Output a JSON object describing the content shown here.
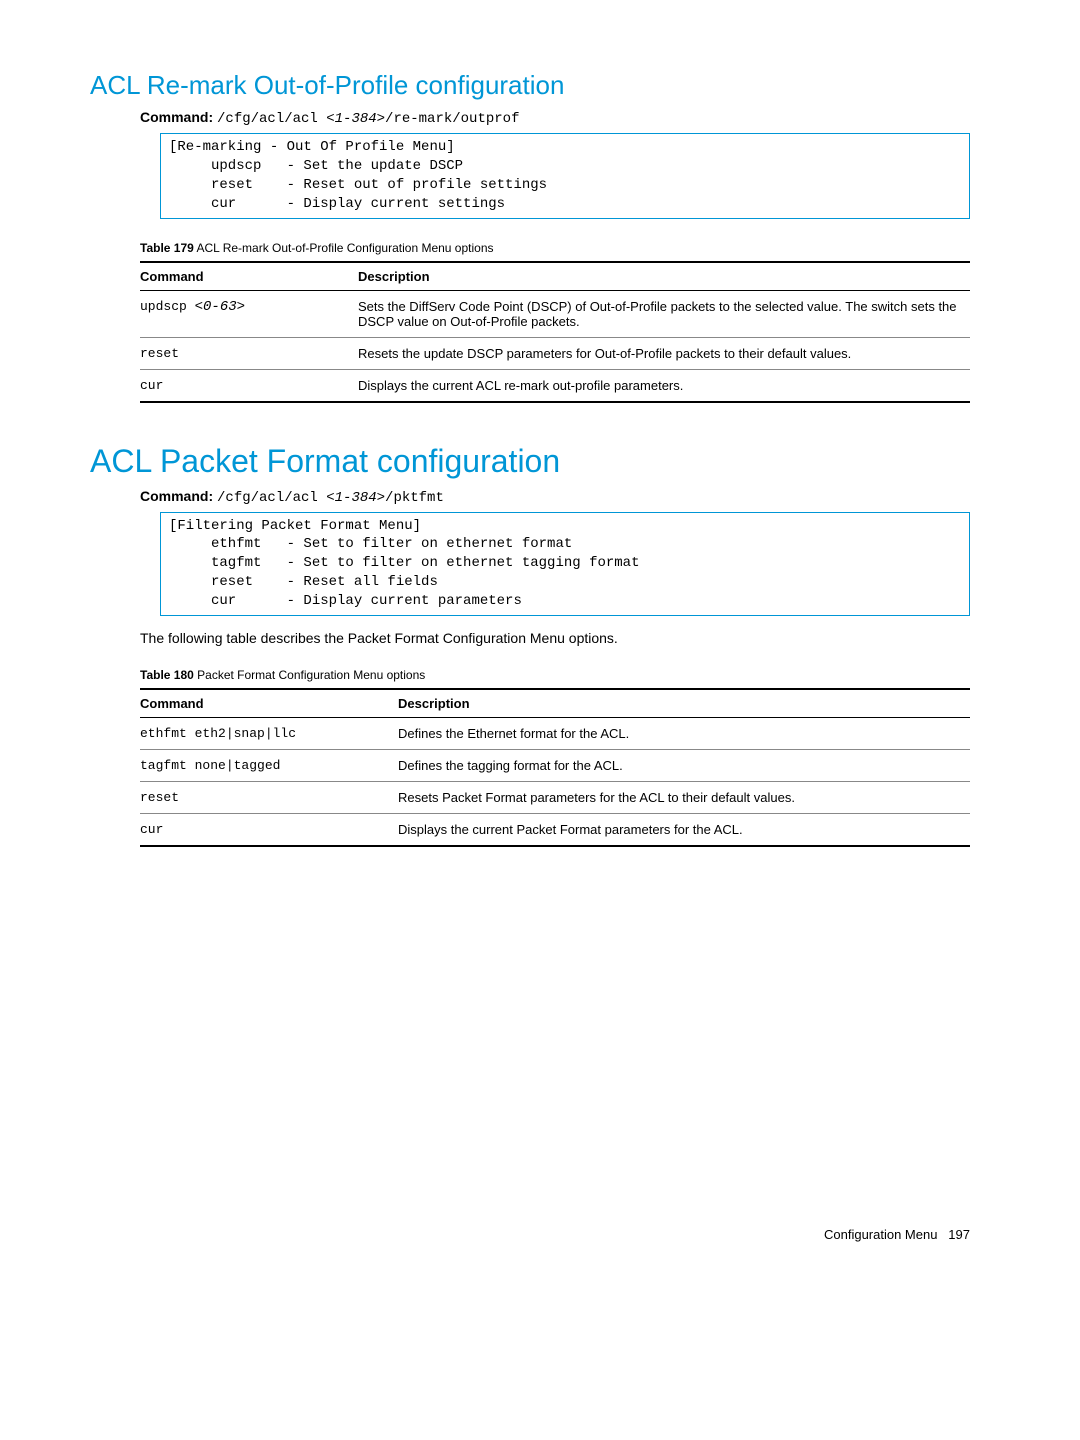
{
  "section1": {
    "title": "ACL Re-mark Out-of-Profile configuration",
    "command_label": "Command:",
    "command_prefix": "/cfg/acl/acl ",
    "command_arg": "<1-384>",
    "command_suffix": "/re-mark/outprof",
    "terminal": "[Re-marking - Out Of Profile Menu]\n     updscp   - Set the update DSCP\n     reset    - Reset out of profile settings\n     cur      - Display current settings",
    "table_caption_label": "Table 179",
    "table_caption_text": "ACL Re-mark Out-of-Profile Configuration Menu options",
    "headers": {
      "cmd": "Command",
      "desc": "Description"
    },
    "rows": [
      {
        "cmd": "updscp ",
        "arg": "<0-63>",
        "desc": "Sets the DiffServ Code Point (DSCP) of Out-of-Profile packets to the selected value. The switch sets the DSCP value on Out-of-Profile packets."
      },
      {
        "cmd": "reset",
        "arg": "",
        "desc": "Resets the update DSCP parameters for Out-of-Profile packets to their default values."
      },
      {
        "cmd": "cur",
        "arg": "",
        "desc": "Displays the current ACL re-mark out-profile parameters."
      }
    ]
  },
  "section2": {
    "title": "ACL Packet Format configuration",
    "command_label": "Command:",
    "command_prefix": "/cfg/acl/acl ",
    "command_arg": "<1-384>",
    "command_suffix": "/pktfmt",
    "terminal": "[Filtering Packet Format Menu]\n     ethfmt   - Set to filter on ethernet format\n     tagfmt   - Set to filter on ethernet tagging format\n     reset    - Reset all fields\n     cur      - Display current parameters",
    "intro": "The following table describes the Packet Format Configuration Menu options.",
    "table_caption_label": "Table 180",
    "table_caption_text": "Packet Format Configuration Menu options",
    "headers": {
      "cmd": "Command",
      "desc": "Description"
    },
    "rows": [
      {
        "cmd": "ethfmt eth2|snap|llc",
        "desc": "Defines the Ethernet format for the ACL."
      },
      {
        "cmd": "tagfmt none|tagged",
        "desc": "Defines the tagging format for the ACL."
      },
      {
        "cmd": "reset",
        "desc": "Resets Packet Format parameters for the ACL to their default values."
      },
      {
        "cmd": "cur",
        "desc": "Displays the current Packet Format parameters for the ACL."
      }
    ]
  },
  "footer": {
    "text": "Configuration Menu",
    "page": "197"
  },
  "colors": {
    "accent": "#0096d6",
    "text": "#000000",
    "rule": "#888888"
  }
}
